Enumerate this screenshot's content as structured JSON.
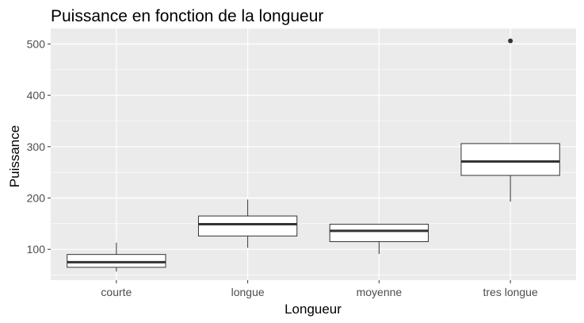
{
  "chart_data": {
    "type": "boxplot",
    "title": "Puissance en fonction de la longueur",
    "xlabel": "Longueur",
    "ylabel": "Puissance",
    "ylim": [
      40,
      530
    ],
    "yticks": [
      100,
      200,
      300,
      400,
      500
    ],
    "grid": true,
    "categories": [
      "courte",
      "longue",
      "moyenne",
      "tres longue"
    ],
    "boxes": [
      {
        "category": "courte",
        "whisker_low": 57,
        "q1": 65,
        "median": 75,
        "q3": 90,
        "whisker_high": 113,
        "outliers": []
      },
      {
        "category": "longue",
        "whisker_low": 103,
        "q1": 126,
        "median": 149,
        "q3": 165,
        "whisker_high": 197,
        "outliers": []
      },
      {
        "category": "moyenne",
        "whisker_low": 91,
        "q1": 115,
        "median": 136,
        "q3": 149,
        "whisker_high": 149,
        "outliers": []
      },
      {
        "category": "tres longue",
        "whisker_low": 193,
        "q1": 244,
        "median": 271,
        "q3": 306,
        "whisker_high": 306,
        "outliers": [
          506
        ]
      }
    ],
    "colors": {
      "panel": "#ebebeb",
      "grid": "#ffffff",
      "box_fill": "#ffffff",
      "box_line": "#333333",
      "outlier": "#333333"
    }
  }
}
